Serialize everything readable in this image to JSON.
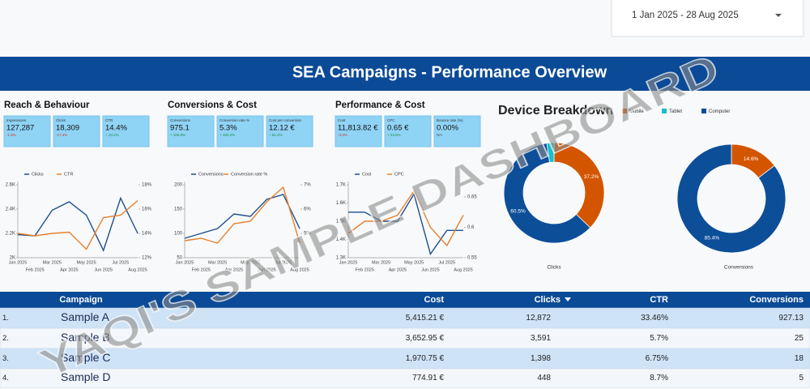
{
  "date_range": "1 Jan 2025 - 28 Aug 2025",
  "header": {
    "title": "SEA Campaigns - Performance Overview"
  },
  "sections": [
    {
      "title": "Reach & Behaviour",
      "kpis": [
        {
          "label": "Impressions",
          "value": "127,287",
          "change": "-1.8%"
        },
        {
          "label": "Clicks",
          "value": "18,309",
          "change": "-17.3%"
        },
        {
          "label": "CTR",
          "value": "14.4%",
          "change": "+ 10.2%"
        }
      ]
    },
    {
      "title": "Conversions & Cost",
      "kpis": [
        {
          "label": "Conversions",
          "value": "975.1",
          "change": "+ 106.8%"
        },
        {
          "label": "Conversion rate %",
          "value": "5.3%",
          "change": "+ 150.2%"
        },
        {
          "label": "Cost per conversion",
          "value": "12.12 €",
          "change": "+ 61.2%"
        }
      ]
    },
    {
      "title": "Performance & Cost",
      "kpis": [
        {
          "label": "Cost",
          "value": "11,813.82 €",
          "change": "-3.2%"
        },
        {
          "label": "CPC",
          "value": "0.65 €",
          "change": "+ 24.5%"
        },
        {
          "label": "Bounce rate (%)",
          "value": "0.00%",
          "change": "N/A"
        }
      ]
    }
  ],
  "device_breakdown": {
    "title": "Device Breakdown"
  },
  "chart_data": [
    {
      "type": "line",
      "x": [
        "Jan 2025",
        "Feb 2025",
        "Mar 2025",
        "Apr 2025",
        "May 2025",
        "Jun 2025",
        "Jul 2025",
        "Aug 2025"
      ],
      "series": [
        {
          "name": "Clicks",
          "color": "#1f4e8c",
          "values": [
            2190,
            2180,
            2390,
            2460,
            2350,
            2060,
            2490,
            2200
          ]
        },
        {
          "name": "CTR",
          "color": "#e8812d",
          "axis": "y2",
          "values": [
            14.0,
            13.8,
            14.0,
            14.1,
            12.7,
            15.3,
            15.5,
            16.7
          ]
        }
      ],
      "ylim": [
        2000,
        2600
      ],
      "yticks": [
        {
          "value": 2000,
          "label": "2K"
        },
        {
          "value": 2200,
          "label": "2.2K"
        },
        {
          "value": 2400,
          "label": "2.4K"
        },
        {
          "value": 2600,
          "label": "2.6K"
        }
      ],
      "y2lim": [
        12,
        18
      ],
      "y2ticks": [
        {
          "value": 12,
          "label": "12%"
        },
        {
          "value": 14,
          "label": "14%"
        },
        {
          "value": 16,
          "label": "16%"
        },
        {
          "value": 18,
          "label": "18%"
        }
      ]
    },
    {
      "type": "line",
      "x": [
        "Jan 2025",
        "Feb 2025",
        "Mar 2025",
        "Apr 2025",
        "May 2025",
        "Jun 2025",
        "Jul 2025",
        "Aug 2025"
      ],
      "series": [
        {
          "name": "Conversions",
          "color": "#1f4e8c",
          "values": [
            90,
            100,
            110,
            140,
            135,
            170,
            180,
            110
          ]
        },
        {
          "name": "Conversion rate %",
          "color": "#e8812d",
          "axis": "y2",
          "values": [
            4.7,
            4.8,
            4.6,
            5.4,
            5.5,
            6.3,
            6.9,
            4.6
          ]
        }
      ],
      "ylim": [
        50,
        200
      ],
      "yticks": [
        50,
        100,
        150,
        200
      ],
      "y2lim": [
        4,
        7
      ],
      "y2ticks": [
        {
          "value": 5,
          "label": "5%"
        },
        {
          "value": 6,
          "label": "6%"
        },
        {
          "value": 7,
          "label": "7%"
        }
      ]
    },
    {
      "type": "line",
      "x": [
        "Jan 2025",
        "Feb 2025",
        "Mar 2025",
        "Apr 2025",
        "May 2025",
        "Jun 2025",
        "Jul 2025",
        "Aug 2025"
      ],
      "series": [
        {
          "name": "Cost",
          "color": "#1f4e8c",
          "values": [
            1550,
            1550,
            1500,
            1500,
            1650,
            1320,
            1450,
            1450
          ]
        },
        {
          "name": "CPC",
          "color": "#e8812d",
          "axis": "y2",
          "values": [
            0.59,
            0.61,
            0.61,
            0.62,
            0.66,
            0.6,
            0.57,
            0.62
          ]
        }
      ],
      "ylim": [
        1300,
        1700
      ],
      "yticks": [
        {
          "value": 1300,
          "label": "1.3K"
        },
        {
          "value": 1400,
          "label": "1.4K"
        },
        {
          "value": 1500,
          "label": "1.5K"
        },
        {
          "value": 1600,
          "label": "1.6K"
        },
        {
          "value": 1700,
          "label": "1.7K"
        }
      ],
      "y2lim": [
        0.55,
        0.67
      ],
      "y2ticks": [
        0.55,
        0.6,
        0.65
      ]
    },
    {
      "type": "pie",
      "xlabel": "Clicks",
      "categories": [
        "Mobile",
        "Tablet",
        "Computer"
      ],
      "colors": [
        "#d45500",
        "#17becf",
        "#0d4e99"
      ],
      "values": [
        37.2,
        2.3,
        60.5
      ],
      "value_labels": [
        "37.2%",
        null,
        "60.5%"
      ]
    },
    {
      "type": "pie",
      "xlabel": "Conversions",
      "categories": [
        "Mobile",
        "Tablet",
        "Computer"
      ],
      "colors": [
        "#d45500",
        "#17becf",
        "#0d4e99"
      ],
      "values": [
        14.6,
        0,
        85.4
      ],
      "value_labels": [
        "14.6%",
        null,
        "85.4%"
      ]
    }
  ],
  "table": {
    "columns": [
      "Campaign",
      "Cost",
      "Clicks",
      "CTR",
      "Conversions"
    ],
    "rows": [
      [
        "1.",
        "Sample A",
        "5,415.21 €",
        "12,872",
        "33.46%",
        "927.13"
      ],
      [
        "2.",
        "Sample B",
        "3,652.95 €",
        "3,591",
        "5.7%",
        "25"
      ],
      [
        "3.",
        "Sample C",
        "1,970.75 €",
        "1,398",
        "6.75%",
        "18"
      ],
      [
        "4.",
        "Sample D",
        "774.91 €",
        "448",
        "8.7%",
        "5"
      ]
    ]
  },
  "watermark": "YAQI'S SAMPLE DASHBOARD"
}
